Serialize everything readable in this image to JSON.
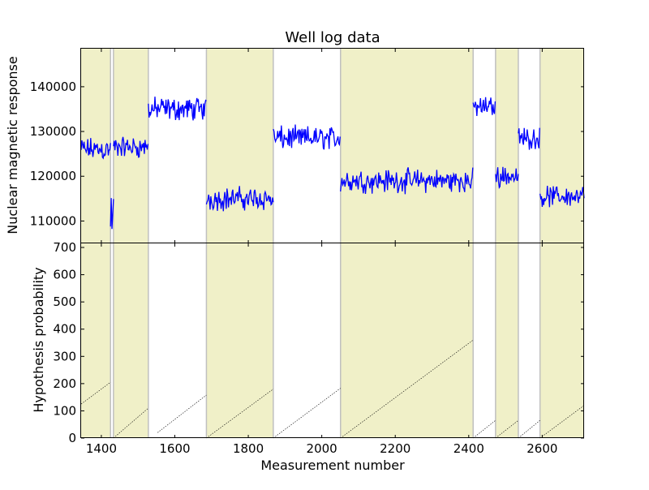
{
  "title": "Well log data",
  "colors": {
    "signal": "#0000ff",
    "shade": "#f0f0c8",
    "boundary": "#c0c0c0",
    "run_line": "#000000"
  },
  "chart_data": [
    {
      "type": "line",
      "title": "Well log data",
      "ylabel": "Nuclear magnetic response",
      "xlim": [
        1345,
        2714
      ],
      "ylim": [
        105000,
        148500
      ],
      "yticks": [
        110000,
        120000,
        130000,
        140000
      ],
      "ytick_labels": [
        "110000",
        "120000",
        "130000",
        "140000"
      ],
      "grid": false,
      "shaded_regions": [
        [
          1345,
          1425
        ],
        [
          1433,
          1528
        ],
        [
          1686,
          1868
        ],
        [
          2051,
          2412
        ],
        [
          2473,
          2535
        ],
        [
          2594,
          2714
        ]
      ],
      "boundaries": [
        1425,
        1433,
        1528,
        1686,
        1868,
        2051,
        2412,
        2473,
        2535,
        2594
      ],
      "series": [
        {
          "segments": [
            {
              "x_start": 1345,
              "x_end": 1425,
              "mean": 126000,
              "noise": 2000
            },
            {
              "x_start": 1425,
              "x_end": 1433,
              "mean": 111000,
              "noise": 5000
            },
            {
              "x_start": 1433,
              "x_end": 1528,
              "mean": 126500,
              "noise": 1800
            },
            {
              "x_start": 1528,
              "x_end": 1686,
              "mean": 135000,
              "noise": 2000
            },
            {
              "x_start": 1686,
              "x_end": 1868,
              "mean": 115000,
              "noise": 2000
            },
            {
              "x_start": 1868,
              "x_end": 2051,
              "mean": 128500,
              "noise": 2000
            },
            {
              "x_start": 2051,
              "x_end": 2412,
              "mean": 119000,
              "noise": 2000
            },
            {
              "x_start": 2412,
              "x_end": 2473,
              "mean": 135500,
              "noise": 1800
            },
            {
              "x_start": 2473,
              "x_end": 2535,
              "mean": 120000,
              "noise": 1800
            },
            {
              "x_start": 2535,
              "x_end": 2594,
              "mean": 128500,
              "noise": 1800
            },
            {
              "x_start": 2594,
              "x_end": 2714,
              "mean": 115500,
              "noise": 1800
            }
          ]
        }
      ]
    },
    {
      "type": "line",
      "xlabel": "Measurement number",
      "ylabel": "Hypothesis probability",
      "xlim": [
        1345,
        2714
      ],
      "ylim": [
        0,
        715
      ],
      "xticks": [
        1400,
        1600,
        1800,
        2000,
        2200,
        2400,
        2600
      ],
      "xtick_labels": [
        "1400",
        "1600",
        "1800",
        "2000",
        "2200",
        "2400",
        "2600"
      ],
      "yticks": [
        0,
        100,
        200,
        300,
        400,
        500,
        600,
        700
      ],
      "ytick_labels": [
        "0",
        "100",
        "200",
        "300",
        "400",
        "500",
        "600",
        "700"
      ],
      "grid": false,
      "shaded_regions": [
        [
          1345,
          1425
        ],
        [
          1433,
          1528
        ],
        [
          1686,
          1868
        ],
        [
          2051,
          2412
        ],
        [
          2473,
          2535
        ],
        [
          2594,
          2714
        ]
      ],
      "boundaries": [
        1425,
        1433,
        1528,
        1686,
        1868,
        2051,
        2412,
        2473,
        2535,
        2594
      ],
      "series": [
        {
          "segments": [
            {
              "x_start": 1345,
              "x_end": 1425,
              "y_start": 125,
              "y_end": 205
            },
            {
              "x_start": 1433,
              "x_end": 1528,
              "y_start": 0,
              "y_end": 110
            },
            {
              "x_start": 1553,
              "x_end": 1686,
              "y_start": 20,
              "y_end": 158
            },
            {
              "x_start": 1686,
              "x_end": 1868,
              "y_start": 0,
              "y_end": 180
            },
            {
              "x_start": 1868,
              "x_end": 2051,
              "y_start": 0,
              "y_end": 183
            },
            {
              "x_start": 2051,
              "x_end": 2412,
              "y_start": 0,
              "y_end": 360
            },
            {
              "x_start": 2412,
              "x_end": 2473,
              "y_start": 0,
              "y_end": 65
            },
            {
              "x_start": 2473,
              "x_end": 2535,
              "y_start": 0,
              "y_end": 65
            },
            {
              "x_start": 2535,
              "x_end": 2594,
              "y_start": 0,
              "y_end": 65
            },
            {
              "x_start": 2594,
              "x_end": 2714,
              "y_start": 0,
              "y_end": 120
            }
          ]
        }
      ]
    }
  ]
}
